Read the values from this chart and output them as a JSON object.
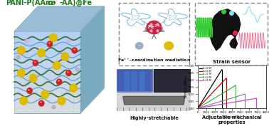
{
  "title_color": "#1a7a1a",
  "bg_color": "#ffffff",
  "line_blue": "#4499cc",
  "line_green": "#2d6a2d",
  "dot_red": "#cc2222",
  "dot_yellow": "#ddbb00",
  "dot_gray": "#aaaaaa",
  "dot_pink": "#ddaacc",
  "stress_strain_data": {
    "curves": [
      {
        "label": "0.20 M",
        "color": "#000000",
        "xend": 2800,
        "yend": 0.27
      },
      {
        "label": "0.40 M",
        "color": "#cc0000",
        "xend": 3300,
        "yend": 0.21
      },
      {
        "label": "0.27 M",
        "color": "#33bb33",
        "xend": 4400,
        "yend": 0.16
      },
      {
        "label": "0.42 M",
        "color": "#888888",
        "xend": 5500,
        "yend": 0.1
      },
      {
        "label": "0.45 M",
        "color": "#cc44cc",
        "xend": 6800,
        "yend": 0.07
      }
    ],
    "xlim": [
      0,
      8000
    ],
    "ylim": [
      0,
      0.3
    ],
    "xlabel": "Strain (%)",
    "ylabel": "Stress (MPa)"
  },
  "cube_front": "#c5dff0",
  "cube_top": "#a8ccdf",
  "cube_right": "#8fb8ce",
  "cube_front_bottom": "#e8d8c8",
  "cube_edge": "#8aaabb"
}
